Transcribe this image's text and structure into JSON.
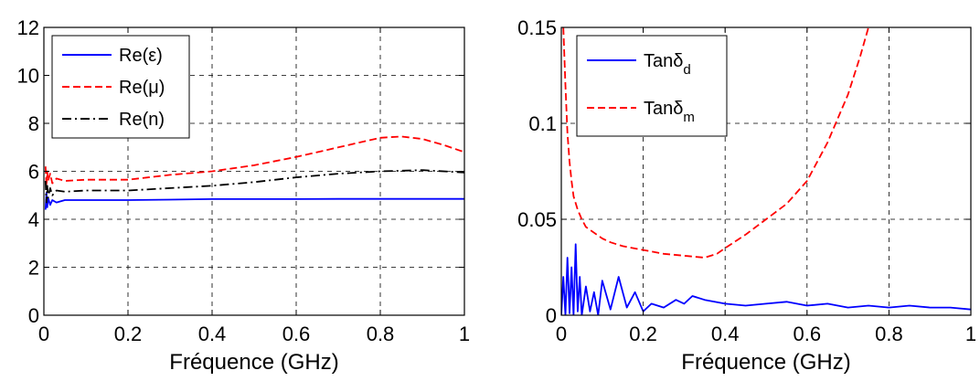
{
  "colors": {
    "blue": "#0000ff",
    "red": "#ff0000",
    "black": "#000000",
    "grid": "#000000"
  },
  "chart_data": [
    {
      "type": "line",
      "xlabel": "Fréquence (GHz)",
      "ylabel": "",
      "xlim": [
        0,
        1
      ],
      "ylim": [
        0,
        12
      ],
      "xticks": [
        "0",
        "0.2",
        "0.4",
        "0.6",
        "0.8",
        "1"
      ],
      "yticks": [
        "0",
        "2",
        "4",
        "6",
        "8",
        "10",
        "12"
      ],
      "grid": true,
      "legend_position": "top-left",
      "series": [
        {
          "name": "Re(ε)",
          "color": "#0000ff",
          "style": "solid",
          "x": [
            0.004,
            0.006,
            0.008,
            0.01,
            0.015,
            0.02,
            0.03,
            0.05,
            0.1,
            0.2,
            0.3,
            0.4,
            0.5,
            0.6,
            0.7,
            0.8,
            0.9,
            1.0
          ],
          "y": [
            4.4,
            5.1,
            4.5,
            4.9,
            4.6,
            4.8,
            4.7,
            4.8,
            4.8,
            4.8,
            4.82,
            4.84,
            4.84,
            4.84,
            4.85,
            4.85,
            4.85,
            4.85
          ]
        },
        {
          "name": "Re(μ)",
          "color": "#ff0000",
          "style": "dashed",
          "x": [
            0.004,
            0.006,
            0.008,
            0.01,
            0.015,
            0.02,
            0.03,
            0.05,
            0.1,
            0.2,
            0.3,
            0.4,
            0.5,
            0.6,
            0.7,
            0.75,
            0.8,
            0.85,
            0.9,
            0.95,
            1.0
          ],
          "y": [
            6.2,
            5.4,
            6.0,
            5.6,
            5.9,
            5.5,
            5.7,
            5.6,
            5.65,
            5.65,
            5.85,
            6.0,
            6.25,
            6.6,
            7.0,
            7.2,
            7.4,
            7.45,
            7.35,
            7.1,
            6.8
          ]
        },
        {
          "name": "Re(n)",
          "color": "#000000",
          "style": "dashdot",
          "x": [
            0.004,
            0.006,
            0.008,
            0.01,
            0.015,
            0.02,
            0.03,
            0.05,
            0.1,
            0.2,
            0.3,
            0.4,
            0.5,
            0.6,
            0.7,
            0.8,
            0.9,
            1.0
          ],
          "y": [
            5.6,
            4.7,
            5.4,
            4.9,
            5.3,
            5.0,
            5.2,
            5.15,
            5.2,
            5.2,
            5.3,
            5.4,
            5.55,
            5.75,
            5.9,
            6.0,
            6.05,
            5.95
          ]
        }
      ]
    },
    {
      "type": "line",
      "xlabel": "Fréquence (GHz)",
      "ylabel": "",
      "xlim": [
        0,
        1
      ],
      "ylim": [
        0,
        0.15
      ],
      "xticks": [
        "0",
        "0.2",
        "0.4",
        "0.6",
        "0.8",
        "1"
      ],
      "yticks": [
        "0",
        "0.05",
        "0.1",
        "0.15"
      ],
      "grid": true,
      "legend_position": "top-left",
      "series": [
        {
          "name": "Tanδ",
          "subscript": "d",
          "color": "#0000ff",
          "style": "solid",
          "x": [
            0.0,
            0.005,
            0.01,
            0.015,
            0.02,
            0.025,
            0.03,
            0.035,
            0.04,
            0.045,
            0.05,
            0.06,
            0.07,
            0.08,
            0.09,
            0.1,
            0.12,
            0.14,
            0.16,
            0.18,
            0.2,
            0.22,
            0.25,
            0.28,
            0.3,
            0.32,
            0.35,
            0.4,
            0.45,
            0.5,
            0.55,
            0.6,
            0.65,
            0.7,
            0.75,
            0.8,
            0.85,
            0.9,
            0.95,
            1.0
          ],
          "y": [
            0.0,
            0.02,
            0.0,
            0.03,
            0.001,
            0.025,
            0.0,
            0.037,
            0.002,
            0.02,
            0.0,
            0.015,
            0.002,
            0.012,
            0.0,
            0.018,
            0.003,
            0.02,
            0.004,
            0.012,
            0.002,
            0.006,
            0.004,
            0.008,
            0.006,
            0.01,
            0.008,
            0.006,
            0.005,
            0.006,
            0.007,
            0.005,
            0.006,
            0.004,
            0.005,
            0.004,
            0.005,
            0.004,
            0.004,
            0.003
          ]
        },
        {
          "name": "Tanδ",
          "subscript": "m",
          "color": "#ff0000",
          "style": "dashed",
          "x": [
            0.005,
            0.01,
            0.015,
            0.02,
            0.025,
            0.03,
            0.04,
            0.05,
            0.06,
            0.08,
            0.1,
            0.12,
            0.15,
            0.2,
            0.25,
            0.3,
            0.35,
            0.38,
            0.4,
            0.45,
            0.5,
            0.55,
            0.6,
            0.65,
            0.7,
            0.73,
            0.75
          ],
          "y": [
            0.15,
            0.12,
            0.095,
            0.08,
            0.07,
            0.062,
            0.055,
            0.05,
            0.046,
            0.043,
            0.04,
            0.038,
            0.036,
            0.034,
            0.032,
            0.031,
            0.03,
            0.032,
            0.035,
            0.042,
            0.05,
            0.058,
            0.07,
            0.09,
            0.115,
            0.135,
            0.15
          ]
        }
      ]
    }
  ]
}
